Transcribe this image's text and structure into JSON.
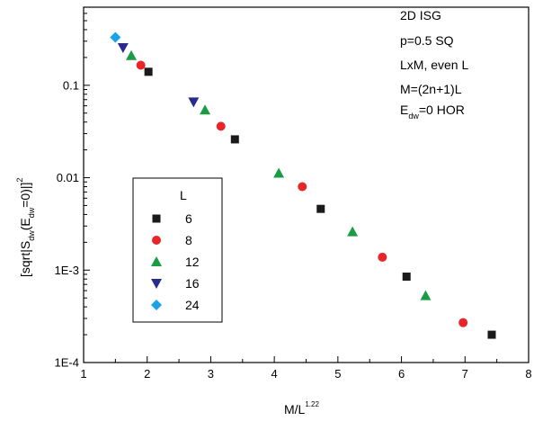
{
  "chart_data": {
    "type": "scatter",
    "x_scale": "linear",
    "y_scale": "log",
    "xlim": [
      1,
      8
    ],
    "ylim": [
      0.0001,
      0.7
    ],
    "x_ticks": [
      1,
      2,
      3,
      4,
      5,
      6,
      7,
      8
    ],
    "x_tick_labels": [
      "1",
      "2",
      "3",
      "4",
      "5",
      "6",
      "7",
      "8"
    ],
    "y_ticks": [
      0.0001,
      0.001,
      0.01,
      0.1
    ],
    "y_tick_labels": [
      "1E-4",
      "1E-3",
      "0.01",
      "0.1"
    ],
    "xlabel": {
      "base": "M/L",
      "sup": "1.22"
    },
    "ylabel": {
      "p1": "[sqrt|S",
      "sub1": "dw",
      "p2": "(E",
      "sub2": "dw",
      "p3": "=0)|]",
      "sup": "2"
    },
    "annotations": [
      {
        "text": "2D ISG"
      },
      {
        "text": "p=0.5 SQ"
      },
      {
        "text": "LxM, even L"
      },
      {
        "text": "M=(2n+1)L"
      },
      {
        "base": "E",
        "sub": "dw",
        "rest": "=0 HOR"
      }
    ],
    "legend": {
      "title": "L",
      "placement": "center-left"
    },
    "series": [
      {
        "name": "6",
        "marker": "square",
        "color": "#1a1a1a",
        "points": [
          [
            2.02,
            0.14
          ],
          [
            3.38,
            0.026
          ],
          [
            4.73,
            0.0046
          ],
          [
            6.08,
            0.00085
          ],
          [
            7.42,
            0.0002
          ]
        ]
      },
      {
        "name": "8",
        "marker": "circle",
        "color": "#e8262a",
        "points": [
          [
            1.9,
            0.165
          ],
          [
            3.16,
            0.036
          ],
          [
            4.44,
            0.008
          ],
          [
            5.7,
            0.00138
          ],
          [
            6.97,
            0.00027
          ]
        ]
      },
      {
        "name": "12",
        "marker": "triangle-up",
        "color": "#1a9c44",
        "points": [
          [
            1.75,
            0.21
          ],
          [
            2.91,
            0.054
          ],
          [
            4.07,
            0.0112
          ],
          [
            5.23,
            0.0026
          ],
          [
            6.38,
            0.00053
          ]
        ]
      },
      {
        "name": "16",
        "marker": "triangle-down",
        "color": "#2a2a8c",
        "points": [
          [
            1.62,
            0.255
          ],
          [
            2.73,
            0.066
          ]
        ]
      },
      {
        "name": "24",
        "marker": "diamond",
        "color": "#1aa3e8",
        "points": [
          [
            1.5,
            0.33
          ]
        ]
      }
    ]
  }
}
